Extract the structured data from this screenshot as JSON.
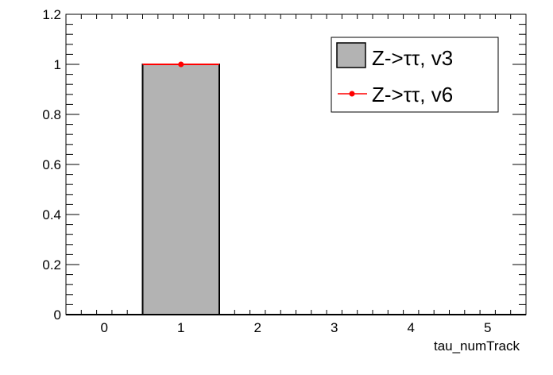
{
  "chart_data": {
    "type": "bar",
    "title": "",
    "xlabel": "tau_numTrack",
    "ylabel": "",
    "xlim": [
      -0.5,
      5.5
    ],
    "ylim": [
      0,
      1.2
    ],
    "x_ticks": [
      "0",
      "1",
      "2",
      "3",
      "4",
      "5"
    ],
    "y_ticks": [
      "0",
      "0.2",
      "0.4",
      "0.6",
      "0.8",
      "1",
      "1.2"
    ],
    "grid": false,
    "legend_position": "top-right",
    "series": [
      {
        "name": "Z->ττ, v3",
        "style": "filled-histogram",
        "color": "#b3b3b3",
        "bins": [
          {
            "low": 0.5,
            "high": 1.5,
            "value": 1
          }
        ]
      },
      {
        "name": "Z->ττ, v6",
        "style": "marker-line",
        "color": "#ff0000",
        "points": [
          {
            "x": 1,
            "y": 1,
            "low": 0.5,
            "high": 1.5
          }
        ]
      }
    ]
  }
}
